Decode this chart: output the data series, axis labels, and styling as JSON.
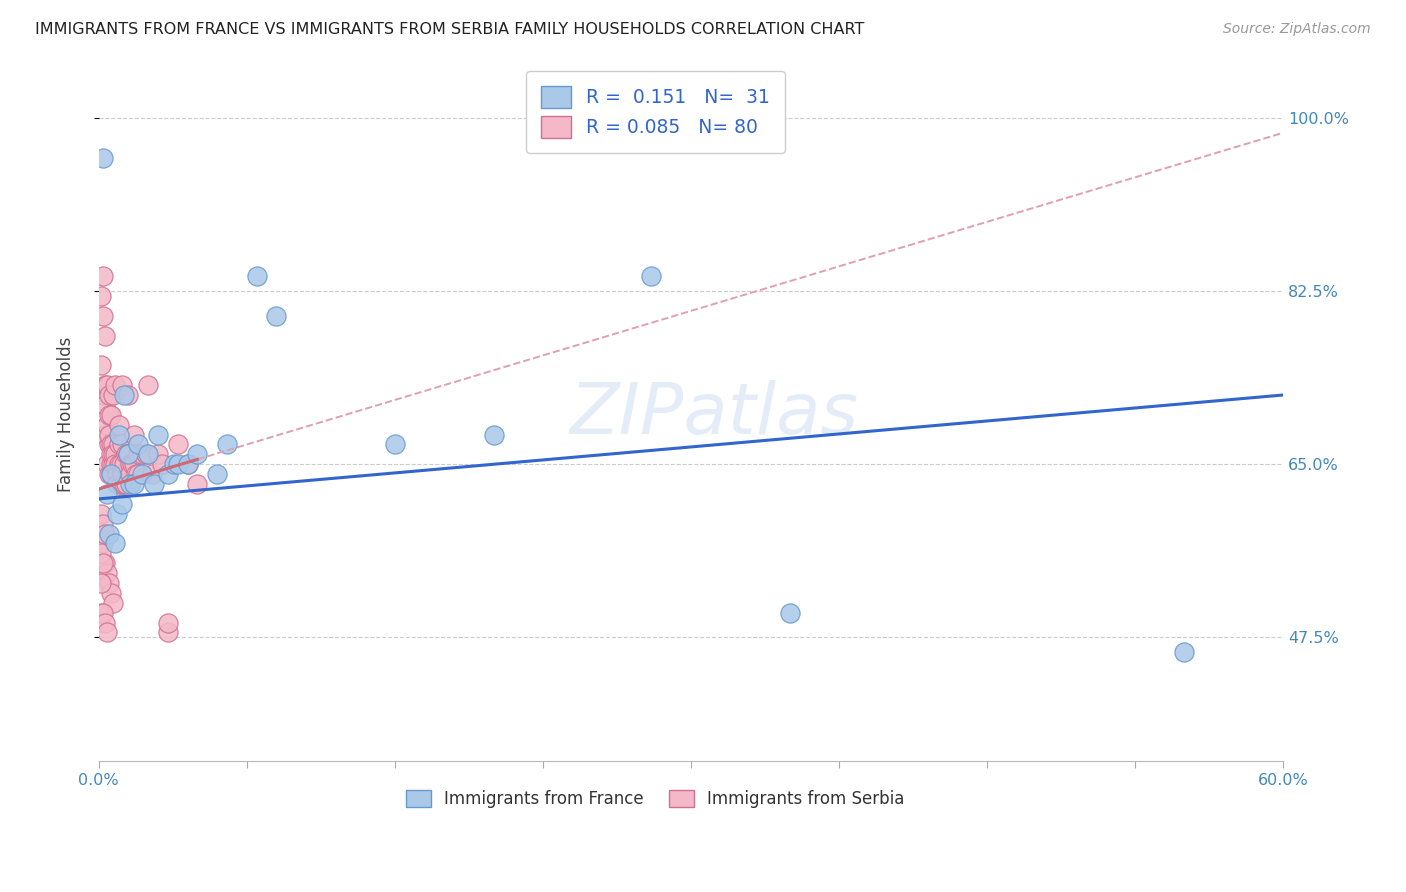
{
  "title": "IMMIGRANTS FROM FRANCE VS IMMIGRANTS FROM SERBIA FAMILY HOUSEHOLDS CORRELATION CHART",
  "source": "Source: ZipAtlas.com",
  "ylabel": "Family Households",
  "ytick_labels": [
    "100.0%",
    "82.5%",
    "65.0%",
    "47.5%"
  ],
  "ytick_values": [
    1.0,
    0.825,
    0.65,
    0.475
  ],
  "xlim": [
    0.0,
    0.6
  ],
  "ylim": [
    0.35,
    1.05
  ],
  "watermark": "ZIPatlas",
  "france_R": "0.151",
  "france_N": "31",
  "serbia_R": "0.085",
  "serbia_N": "80",
  "france_color": "#aac8e8",
  "france_edge": "#6699cc",
  "serbia_color": "#f4b8c8",
  "serbia_edge": "#d07090",
  "france_line_color": "#3366cc",
  "serbia_solid_color": "#d06878",
  "serbia_dash_color": "#e0a0b0",
  "france_x": [
    0.002,
    0.004,
    0.005,
    0.006,
    0.008,
    0.009,
    0.01,
    0.012,
    0.013,
    0.015,
    0.016,
    0.018,
    0.02,
    0.022,
    0.025,
    0.028,
    0.03,
    0.035,
    0.038,
    0.04,
    0.045,
    0.05,
    0.06,
    0.065,
    0.08,
    0.09,
    0.15,
    0.2,
    0.28,
    0.35,
    0.55
  ],
  "france_y": [
    0.96,
    0.62,
    0.58,
    0.64,
    0.57,
    0.6,
    0.68,
    0.61,
    0.72,
    0.66,
    0.63,
    0.63,
    0.67,
    0.64,
    0.66,
    0.63,
    0.68,
    0.64,
    0.65,
    0.65,
    0.65,
    0.66,
    0.64,
    0.67,
    0.84,
    0.8,
    0.67,
    0.68,
    0.84,
    0.5,
    0.46
  ],
  "serbia_x": [
    0.001,
    0.001,
    0.002,
    0.002,
    0.002,
    0.003,
    0.003,
    0.003,
    0.003,
    0.004,
    0.004,
    0.004,
    0.005,
    0.005,
    0.005,
    0.005,
    0.005,
    0.006,
    0.006,
    0.006,
    0.006,
    0.006,
    0.007,
    0.007,
    0.007,
    0.007,
    0.008,
    0.008,
    0.008,
    0.009,
    0.009,
    0.01,
    0.01,
    0.01,
    0.011,
    0.011,
    0.012,
    0.012,
    0.012,
    0.013,
    0.013,
    0.014,
    0.014,
    0.015,
    0.015,
    0.016,
    0.016,
    0.017,
    0.018,
    0.018,
    0.019,
    0.02,
    0.02,
    0.022,
    0.024,
    0.025,
    0.027,
    0.03,
    0.032,
    0.035,
    0.035,
    0.04,
    0.045,
    0.05,
    0.002,
    0.003,
    0.004,
    0.005,
    0.006,
    0.007,
    0.001,
    0.002,
    0.003,
    0.004,
    0.001,
    0.002,
    0.003,
    0.001,
    0.002,
    0.001
  ],
  "serbia_y": [
    0.75,
    0.82,
    0.84,
    0.8,
    0.72,
    0.78,
    0.71,
    0.73,
    0.68,
    0.65,
    0.73,
    0.69,
    0.67,
    0.64,
    0.72,
    0.7,
    0.68,
    0.65,
    0.64,
    0.7,
    0.67,
    0.66,
    0.65,
    0.72,
    0.67,
    0.66,
    0.73,
    0.66,
    0.65,
    0.64,
    0.63,
    0.69,
    0.67,
    0.65,
    0.65,
    0.63,
    0.73,
    0.67,
    0.64,
    0.65,
    0.63,
    0.66,
    0.63,
    0.72,
    0.66,
    0.65,
    0.64,
    0.65,
    0.68,
    0.65,
    0.64,
    0.64,
    0.66,
    0.66,
    0.66,
    0.73,
    0.64,
    0.66,
    0.65,
    0.48,
    0.49,
    0.67,
    0.65,
    0.63,
    0.57,
    0.55,
    0.54,
    0.53,
    0.52,
    0.51,
    0.5,
    0.5,
    0.49,
    0.48,
    0.6,
    0.59,
    0.58,
    0.56,
    0.55,
    0.53
  ]
}
